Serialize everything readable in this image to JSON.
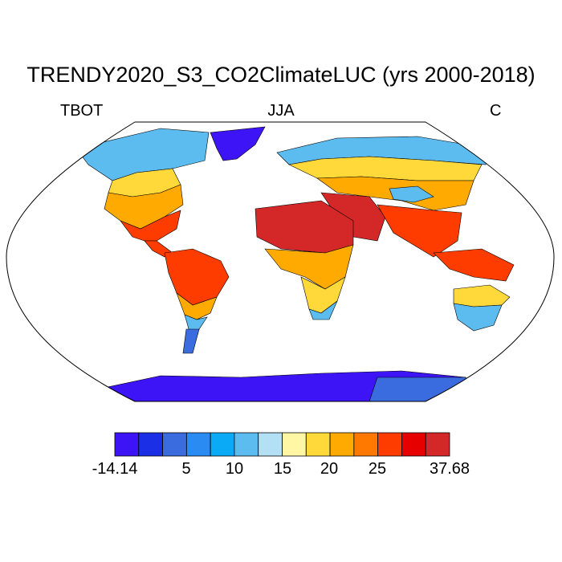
{
  "title": "TRENDY2020_S3_CO2ClimateLUC (yrs 2000-2018)",
  "left_label": "TBOT",
  "center_label": "JJA",
  "right_label": "C",
  "colorbar": {
    "colors": [
      "#3d14f5",
      "#1a2fe6",
      "#3a6ce0",
      "#2a8cf3",
      "#0aaaf7",
      "#5cbcf0",
      "#b3e0f5",
      "#fff7a3",
      "#ffd83a",
      "#ffaa00",
      "#ff7800",
      "#ff3c00",
      "#e60000",
      "#d42828"
    ],
    "tick_labels": [
      "-14.14",
      "5",
      "10",
      "15",
      "20",
      "25",
      "37.68"
    ]
  },
  "map_colors": {
    "ocean": "#ffffff",
    "coastline": "#000000",
    "very_cold": "#3d14f5",
    "cold": "#3a6ce0",
    "cool": "#5cbcf0",
    "mild": "#ffd83a",
    "warm": "#ffaa00",
    "hot": "#ff3c00",
    "very_hot": "#d42828"
  }
}
